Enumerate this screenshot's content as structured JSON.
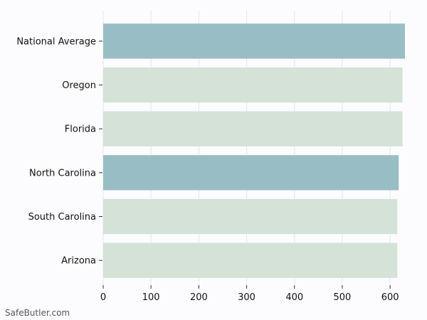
{
  "chart_data": {
    "type": "bar",
    "orientation": "horizontal",
    "categories": [
      "National Average",
      "Oregon",
      "Florida",
      "North Carolina",
      "South Carolina",
      "Arizona"
    ],
    "values": [
      631,
      626,
      626,
      618,
      615,
      615
    ],
    "highlighted": [
      "National Average",
      "North Carolina"
    ],
    "xlim": [
      0,
      640
    ],
    "xticks": [
      0,
      100,
      200,
      300,
      400,
      500,
      600
    ],
    "title": "",
    "xlabel": "",
    "ylabel": "",
    "grid": "vertical",
    "colors": {
      "highlight": "#98bdc5",
      "default": "#d4e2d8",
      "grid": "#e6e6e6",
      "background": "#fcfcfe"
    }
  },
  "watermark": "SafeButler.com"
}
